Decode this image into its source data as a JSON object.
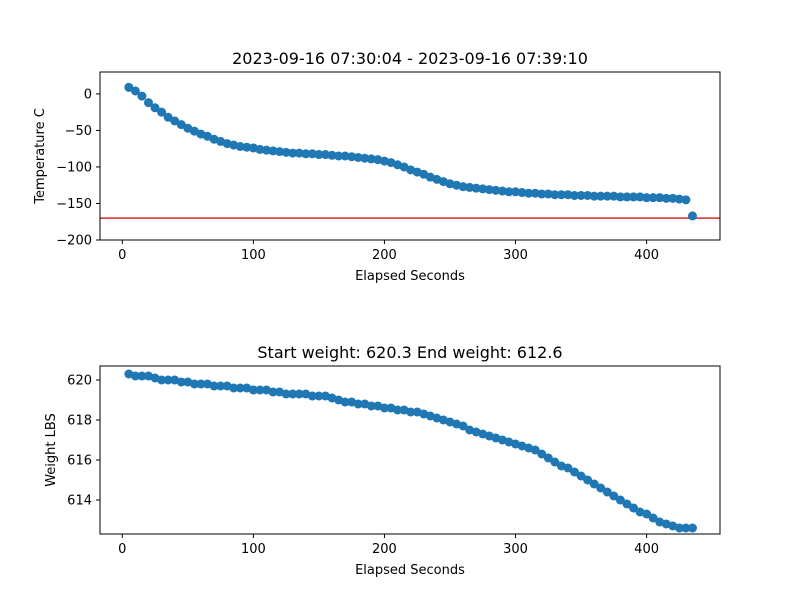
{
  "chart_data": [
    {
      "type": "scatter",
      "title": "2023-09-16 07:30:04 - 2023-09-16 07:39:10",
      "xlabel": "Elapsed Seconds",
      "ylabel": "Temperature C",
      "xlim": [
        -17,
        456
      ],
      "ylim": [
        -200,
        30
      ],
      "xticks": [
        0,
        100,
        200,
        300,
        400
      ],
      "yticks": [
        0,
        -50,
        -100,
        -150,
        -200
      ],
      "xtick_labels": [
        "0",
        "100",
        "200",
        "300",
        "400"
      ],
      "ytick_labels": [
        "0",
        "−50",
        "−100",
        "−150",
        "−200"
      ],
      "grid": false,
      "marker_color": "#1f77b4",
      "reference_line": {
        "y": -170,
        "color": "#d62728"
      },
      "series": [
        {
          "x": [
            5,
            10,
            15,
            20,
            25,
            30,
            35,
            40,
            45,
            50,
            55,
            60,
            65,
            70,
            75,
            80,
            85,
            90,
            95,
            100,
            105,
            110,
            115,
            120,
            125,
            130,
            135,
            140,
            145,
            150,
            155,
            160,
            165,
            170,
            175,
            180,
            185,
            190,
            195,
            200,
            205,
            210,
            215,
            220,
            225,
            230,
            235,
            240,
            245,
            250,
            255,
            260,
            265,
            270,
            275,
            280,
            285,
            290,
            295,
            300,
            305,
            310,
            315,
            320,
            325,
            330,
            335,
            340,
            345,
            350,
            355,
            360,
            365,
            370,
            375,
            380,
            385,
            390,
            395,
            400,
            405,
            410,
            415,
            420,
            425,
            430,
            435
          ],
          "y": [
            9,
            4,
            -3,
            -12,
            -19,
            -25,
            -32,
            -37,
            -42,
            -47,
            -51,
            -55,
            -58,
            -62,
            -65,
            -68,
            -70,
            -72,
            -73,
            -74,
            -76,
            -77,
            -78,
            -79,
            -80,
            -81,
            -81,
            -82,
            -82,
            -83,
            -83,
            -84,
            -85,
            -85,
            -86,
            -87,
            -88,
            -89,
            -90,
            -92,
            -94,
            -97,
            -100,
            -104,
            -107,
            -110,
            -114,
            -117,
            -120,
            -123,
            -125,
            -127,
            -128,
            -129,
            -130,
            -131,
            -132,
            -133,
            -134,
            -134,
            -135,
            -136,
            -136,
            -137,
            -137,
            -138,
            -138,
            -138,
            -139,
            -139,
            -139,
            -140,
            -140,
            -140,
            -140,
            -141,
            -141,
            -141,
            -141,
            -142,
            -142,
            -142,
            -143,
            -143,
            -144,
            -145,
            -167
          ]
        }
      ]
    },
    {
      "type": "scatter",
      "title": "Start weight: 620.3 End weight: 612.6",
      "xlabel": "Elapsed Seconds",
      "ylabel": "Weight LBS",
      "xlim": [
        -17,
        456
      ],
      "ylim": [
        612.3,
        620.7
      ],
      "xticks": [
        0,
        100,
        200,
        300,
        400
      ],
      "yticks": [
        620,
        618,
        616,
        614
      ],
      "xtick_labels": [
        "0",
        "100",
        "200",
        "300",
        "400"
      ],
      "ytick_labels": [
        "620",
        "618",
        "616",
        "614"
      ],
      "grid": false,
      "marker_color": "#1f77b4",
      "series": [
        {
          "x": [
            5,
            10,
            15,
            20,
            25,
            30,
            35,
            40,
            45,
            50,
            55,
            60,
            65,
            70,
            75,
            80,
            85,
            90,
            95,
            100,
            105,
            110,
            115,
            120,
            125,
            130,
            135,
            140,
            145,
            150,
            155,
            160,
            165,
            170,
            175,
            180,
            185,
            190,
            195,
            200,
            205,
            210,
            215,
            220,
            225,
            230,
            235,
            240,
            245,
            250,
            255,
            260,
            265,
            270,
            275,
            280,
            285,
            290,
            295,
            300,
            305,
            310,
            315,
            320,
            325,
            330,
            335,
            340,
            345,
            350,
            355,
            360,
            365,
            370,
            375,
            380,
            385,
            390,
            395,
            400,
            405,
            410,
            415,
            420,
            425,
            430,
            435
          ],
          "y": [
            620.3,
            620.2,
            620.2,
            620.2,
            620.1,
            620.0,
            620.0,
            620.0,
            619.9,
            619.9,
            619.8,
            619.8,
            619.8,
            619.7,
            619.7,
            619.7,
            619.6,
            619.6,
            619.6,
            619.5,
            619.5,
            619.5,
            619.4,
            619.4,
            619.3,
            619.3,
            619.3,
            619.3,
            619.2,
            619.2,
            619.2,
            619.1,
            619.0,
            618.9,
            618.9,
            618.8,
            618.8,
            618.7,
            618.7,
            618.6,
            618.6,
            618.5,
            618.5,
            618.4,
            618.4,
            618.3,
            618.2,
            618.1,
            618.0,
            617.9,
            617.8,
            617.7,
            617.5,
            617.4,
            617.3,
            617.2,
            617.1,
            617.0,
            616.9,
            616.8,
            616.7,
            616.6,
            616.5,
            616.3,
            616.1,
            615.9,
            615.7,
            615.6,
            615.4,
            615.2,
            615.0,
            614.8,
            614.6,
            614.4,
            614.2,
            614.0,
            613.8,
            613.6,
            613.4,
            613.3,
            613.1,
            612.9,
            612.8,
            612.7,
            612.6,
            612.6,
            612.6
          ]
        }
      ]
    }
  ]
}
